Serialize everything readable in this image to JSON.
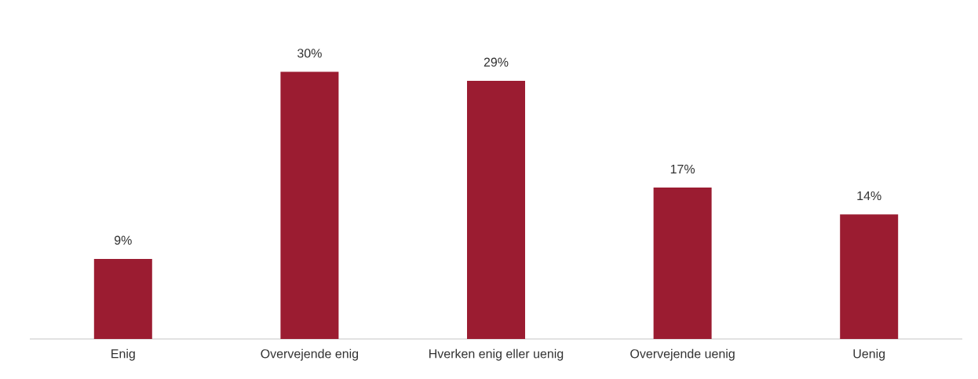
{
  "chart_data": {
    "type": "bar",
    "categories": [
      "Enig",
      "Overvejende enig",
      "Hverken enig eller uenig",
      "Overvejende uenig",
      "Uenig"
    ],
    "values": [
      9,
      30,
      29,
      17,
      14
    ],
    "value_labels": [
      "9%",
      "30%",
      "29%",
      "17%",
      "14%"
    ],
    "color": "#9b1c31"
  }
}
